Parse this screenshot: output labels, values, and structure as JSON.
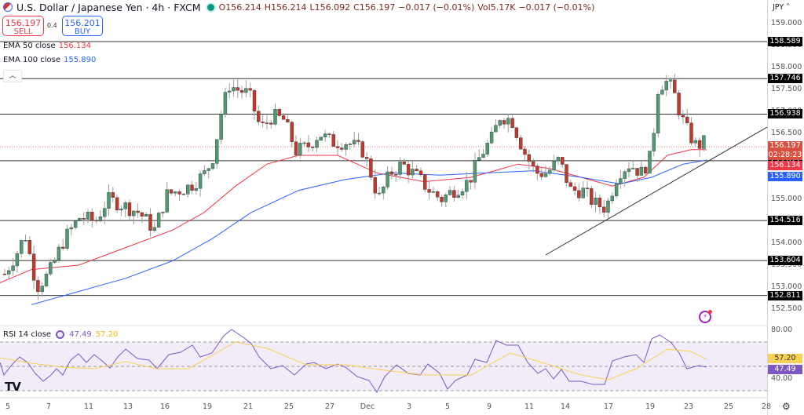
{
  "header": {
    "title": "U.S. Dollar / Japanese Yen · 4h · FXCM",
    "open": "O156.214",
    "high": "H156.214",
    "low": "L156.092",
    "close": "C156.197",
    "change": "−0.017 (−0.01%)",
    "volume": "Vol5.17K",
    "vol_change": "−0.017 (−0.01%)"
  },
  "trade": {
    "sell_price": "156.197",
    "sell_label": "SELL",
    "spread": "0.4",
    "buy_price": "156.201",
    "buy_label": "BUY"
  },
  "indicators": {
    "ema50_label": "EMA 50 close",
    "ema50_value": "156.134",
    "ema100_label": "EMA 100 close",
    "ema100_value": "155.890",
    "rsi_label": "RSI 14 close",
    "rsi_value": "47.49",
    "rsi_ma_value": "57.20"
  },
  "axis": {
    "currency": "JPY",
    "price_ticks": [
      "159.000",
      "158.500",
      "158.000",
      "157.500",
      "157.000",
      "156.500",
      "156.000",
      "155.500",
      "155.000",
      "154.500",
      "154.000",
      "153.500",
      "153.000",
      "152.500"
    ],
    "level_labels": [
      "158.589",
      "157.746",
      "156.938",
      "155.877",
      "154.516",
      "153.604",
      "152.811"
    ],
    "last_price": "156.197",
    "countdown": "02:28:23",
    "ema50_label": "156.134",
    "ema100_label": "155.890",
    "rsi_ticks": [
      "80.00",
      "40.00"
    ],
    "rsi_ma_label": "57.20",
    "rsi_label": "47.49",
    "time_ticks": [
      "5",
      "7",
      "11",
      "13",
      "16",
      "19",
      "21",
      "25",
      "27",
      "Dec",
      "3",
      "5",
      "9",
      "11",
      "14",
      "17",
      "19",
      "23",
      "25",
      "28"
    ]
  },
  "colors": {
    "up": "#4f9a73",
    "down": "#c0392b",
    "ema50": "#f23645",
    "ema100": "#2962ff",
    "rsi": "#7e57c2",
    "rsi_ma": "#f7d154",
    "last_price": "#d85140"
  },
  "chart_data": {
    "type": "candlestick",
    "title": "U.S. Dollar / Japanese Yen · 4h · FXCM",
    "ylabel": "JPY",
    "ylim": [
      152.3,
      159.3
    ],
    "horizontal_levels": [
      158.589,
      157.746,
      156.938,
      155.877,
      154.516,
      153.604,
      152.811
    ],
    "trendline": {
      "from": {
        "x": "Dec 14",
        "price": 153.7
      },
      "to": {
        "x": "Dec 24",
        "price": 156.5
      }
    },
    "series": [
      {
        "name": "EMA 50 close",
        "last": 156.134
      },
      {
        "name": "EMA 100 close",
        "last": 155.89
      },
      {
        "name": "RSI 14",
        "last": 47.49
      },
      {
        "name": "RSI MA",
        "last": 57.2
      }
    ],
    "x_ticks": [
      "5",
      "7",
      "11",
      "13",
      "16",
      "19",
      "21",
      "25",
      "27",
      "Dec",
      "3",
      "5",
      "9",
      "11",
      "14",
      "17",
      "19",
      "23",
      "25",
      "28"
    ],
    "ohlc_last": {
      "open": 156.214,
      "high": 156.214,
      "low": 156.092,
      "close": 156.197
    },
    "rsi_levels": [
      70,
      50,
      30
    ]
  }
}
